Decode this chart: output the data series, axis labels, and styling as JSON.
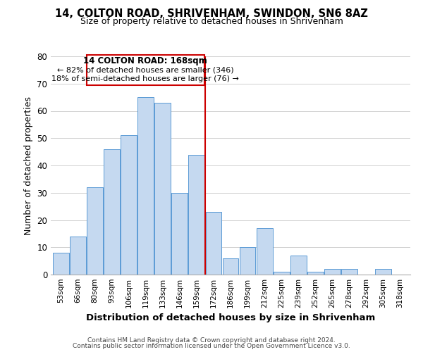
{
  "title": "14, COLTON ROAD, SHRIVENHAM, SWINDON, SN6 8AZ",
  "subtitle": "Size of property relative to detached houses in Shrivenham",
  "xlabel": "Distribution of detached houses by size in Shrivenham",
  "ylabel": "Number of detached properties",
  "bin_labels": [
    "53sqm",
    "66sqm",
    "80sqm",
    "93sqm",
    "106sqm",
    "119sqm",
    "133sqm",
    "146sqm",
    "159sqm",
    "172sqm",
    "186sqm",
    "199sqm",
    "212sqm",
    "225sqm",
    "239sqm",
    "252sqm",
    "265sqm",
    "278sqm",
    "292sqm",
    "305sqm",
    "318sqm"
  ],
  "bar_values": [
    8,
    14,
    32,
    46,
    51,
    65,
    63,
    30,
    44,
    23,
    6,
    10,
    17,
    1,
    7,
    1,
    2,
    2,
    0,
    2,
    0
  ],
  "bar_color": "#c5d9f0",
  "bar_edgecolor": "#5b9bd5",
  "vline_x_index": 9,
  "vline_color": "#cc0000",
  "ylim": [
    0,
    80
  ],
  "yticks": [
    0,
    10,
    20,
    30,
    40,
    50,
    60,
    70,
    80
  ],
  "annotation_title": "14 COLTON ROAD: 168sqm",
  "annotation_line1": "← 82% of detached houses are smaller (346)",
  "annotation_line2": "18% of semi-detached houses are larger (76) →",
  "annotation_box_edgecolor": "#cc0000",
  "footer1": "Contains HM Land Registry data © Crown copyright and database right 2024.",
  "footer2": "Contains public sector information licensed under the Open Government Licence v3.0.",
  "background_color": "#ffffff",
  "grid_color": "#d0d0d0"
}
